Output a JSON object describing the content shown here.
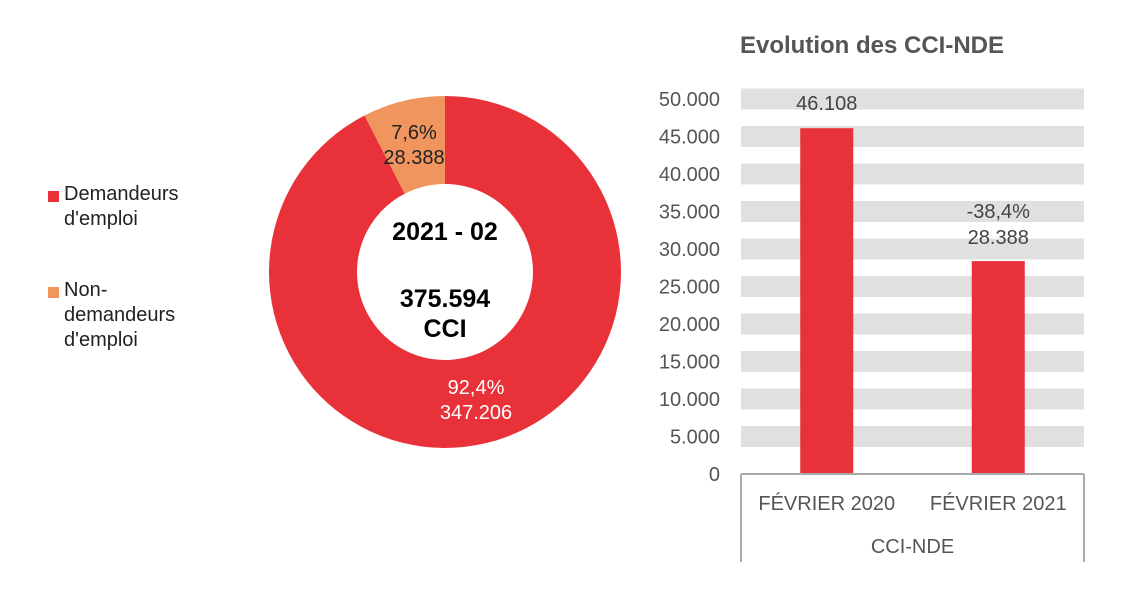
{
  "chart_data": [
    {
      "type": "pie",
      "variant": "donut",
      "center_text": {
        "period": "2021 - 02",
        "total": "375.594",
        "unit": "CCI"
      },
      "legend_placement": "left",
      "slices": [
        {
          "name": "Demandeurs d'emploi",
          "value": 347206,
          "value_label": "347.206",
          "percent_label": "92,4%",
          "color": "#E83138"
        },
        {
          "name": "Non-demandeurs d'emploi",
          "value": 28388,
          "value_label": "28.388",
          "percent_label": "7,6%",
          "color": "#F0955E"
        }
      ]
    },
    {
      "type": "bar",
      "title": "Evolution des CCI-NDE",
      "categories": [
        "FÉVRIER 2020",
        "FÉVRIER 2021"
      ],
      "group_label": "CCI-NDE",
      "values": [
        46108,
        28388
      ],
      "data_labels": [
        "46.108",
        "28.388"
      ],
      "change_label": "-38,4%",
      "ylim": [
        0,
        50000
      ],
      "yticks": [
        "0",
        "5.000",
        "10.000",
        "15.000",
        "20.000",
        "25.000",
        "30.000",
        "35.000",
        "40.000",
        "45.000",
        "50.000"
      ],
      "grid": true,
      "color": "#E83138",
      "grid_color": "#E0E0E0"
    }
  ]
}
